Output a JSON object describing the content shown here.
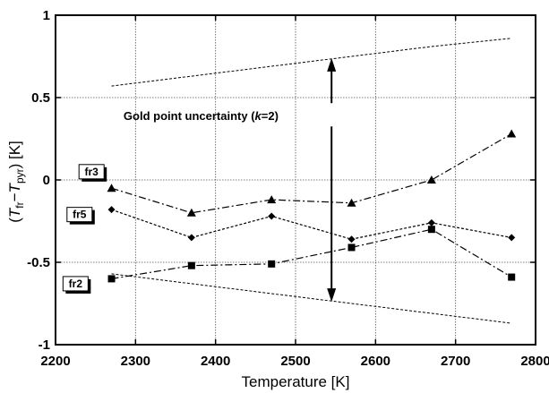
{
  "chart_data": {
    "type": "line",
    "xlabel": "Temperature  [K]",
    "ylabel_prefix": "(",
    "ylabel_T1": "T",
    "ylabel_sub1": "fr",
    "ylabel_dash": "−",
    "ylabel_T2": "T",
    "ylabel_sub2": "pyr",
    "ylabel_suffix": ")  [K]",
    "xlim": [
      2200,
      2800
    ],
    "ylim": [
      -1,
      1
    ],
    "xticks": [
      2200,
      2300,
      2400,
      2500,
      2600,
      2700,
      2800
    ],
    "xtick_labels": [
      "2200",
      "2300",
      "2400",
      "2500",
      "2600",
      "2700",
      "2800"
    ],
    "yticks": [
      -1,
      -0.5,
      0,
      0.5,
      1
    ],
    "ytick_labels": [
      "-1",
      "-0.5",
      "0",
      "0.5",
      "1"
    ],
    "grid": true,
    "uncertainty_band": {
      "upper": {
        "x": [
          2270,
          2370,
          2470,
          2570,
          2670,
          2770
        ],
        "y": [
          0.57,
          0.63,
          0.69,
          0.75,
          0.81,
          0.86
        ]
      },
      "lower": {
        "x": [
          2270,
          2370,
          2470,
          2570,
          2670,
          2770
        ],
        "y": [
          -0.57,
          -0.63,
          -0.69,
          -0.75,
          -0.81,
          -0.87
        ]
      }
    },
    "annotation": {
      "text_main": "Gold point uncertainty (",
      "text_k": "k",
      "text_end": "=2)",
      "arrow_x": 2545,
      "arrow_top": 0.74,
      "arrow_bottom": -0.74,
      "text_x": 2285,
      "text_y": 0.39
    },
    "series": [
      {
        "name": "fr3",
        "marker": "triangle",
        "dash": "dashdot",
        "x": [
          2270,
          2370,
          2470,
          2570,
          2670,
          2770
        ],
        "y": [
          -0.05,
          -0.2,
          -0.12,
          -0.14,
          0.0,
          0.28
        ],
        "label_x": 2245,
        "label_y": 0.05
      },
      {
        "name": "fr5",
        "marker": "diamond",
        "dash": "dotted",
        "x": [
          2270,
          2370,
          2470,
          2570,
          2670,
          2770
        ],
        "y": [
          -0.18,
          -0.35,
          -0.22,
          -0.36,
          -0.26,
          -0.35
        ],
        "label_x": 2230,
        "label_y": -0.21
      },
      {
        "name": "fr2",
        "marker": "square",
        "dash": "dashdot",
        "x": [
          2270,
          2370,
          2470,
          2570,
          2670,
          2770
        ],
        "y": [
          -0.6,
          -0.52,
          -0.51,
          -0.41,
          -0.3,
          -0.59
        ],
        "label_x": 2225,
        "label_y": -0.63
      }
    ]
  }
}
